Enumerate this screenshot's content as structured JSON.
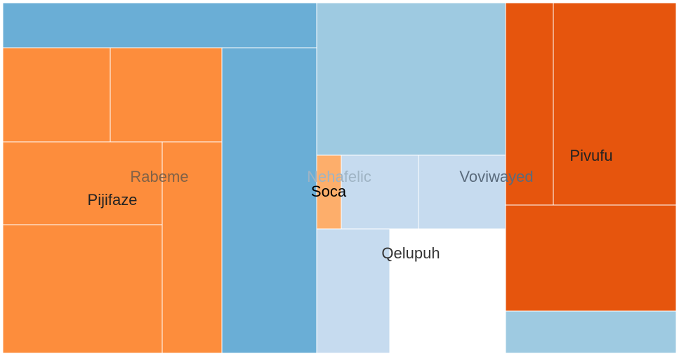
{
  "chart_data": {
    "type": "treemap",
    "colors": {
      "dark_blue": "#6aaed6",
      "light_blue": "#9ecae1",
      "pale_blue": "#c6dbef",
      "orange": "#fd8d3c",
      "light_orange": "#fdae6b",
      "dark_orange": "#e6550d"
    },
    "cells": [
      {
        "color": "#6aaed6",
        "value": 28600
      },
      {
        "color": "#fd8d3c",
        "value": 20500
      },
      {
        "color": "#fd8d3c",
        "value": 21300
      },
      {
        "color": "#fd8d3c",
        "value": 26700
      },
      {
        "color": "#fd8d3c",
        "value": 41100
      },
      {
        "color": "#fd8d3c",
        "value": 25600
      },
      {
        "color": "#6aaed6",
        "value": 58500
      },
      {
        "color": "#9ecae1",
        "value": 58200
      },
      {
        "color": "#fdae6b",
        "value": 3600
      },
      {
        "color": "#c6dbef",
        "value": 11300
      },
      {
        "color": "#c6dbef",
        "value": 12900
      },
      {
        "color": "#c6dbef",
        "value": 18600
      },
      {
        "color": "#e6550d",
        "value": 19400
      },
      {
        "color": "#e6550d",
        "value": 50300
      },
      {
        "color": "#e6550d",
        "value": 36200
      },
      {
        "color": "#9ecae1",
        "value": 14800
      }
    ],
    "labels": [
      {
        "text": "Rabeme",
        "color": "#6b5a4a",
        "opacity": 0.85
      },
      {
        "text": "Pijifaze",
        "color": "#222222",
        "opacity": 1
      },
      {
        "text": "Nehafelic",
        "color": "#9fb4c4",
        "opacity": 1
      },
      {
        "text": "Soca",
        "color": "#000000",
        "opacity": 1
      },
      {
        "text": "Voviwayed",
        "color": "#5a6b7c",
        "opacity": 1
      },
      {
        "text": "Qelupuh",
        "color": "#333333",
        "opacity": 1
      },
      {
        "text": "Pivufu",
        "color": "#222222",
        "opacity": 1
      }
    ]
  }
}
